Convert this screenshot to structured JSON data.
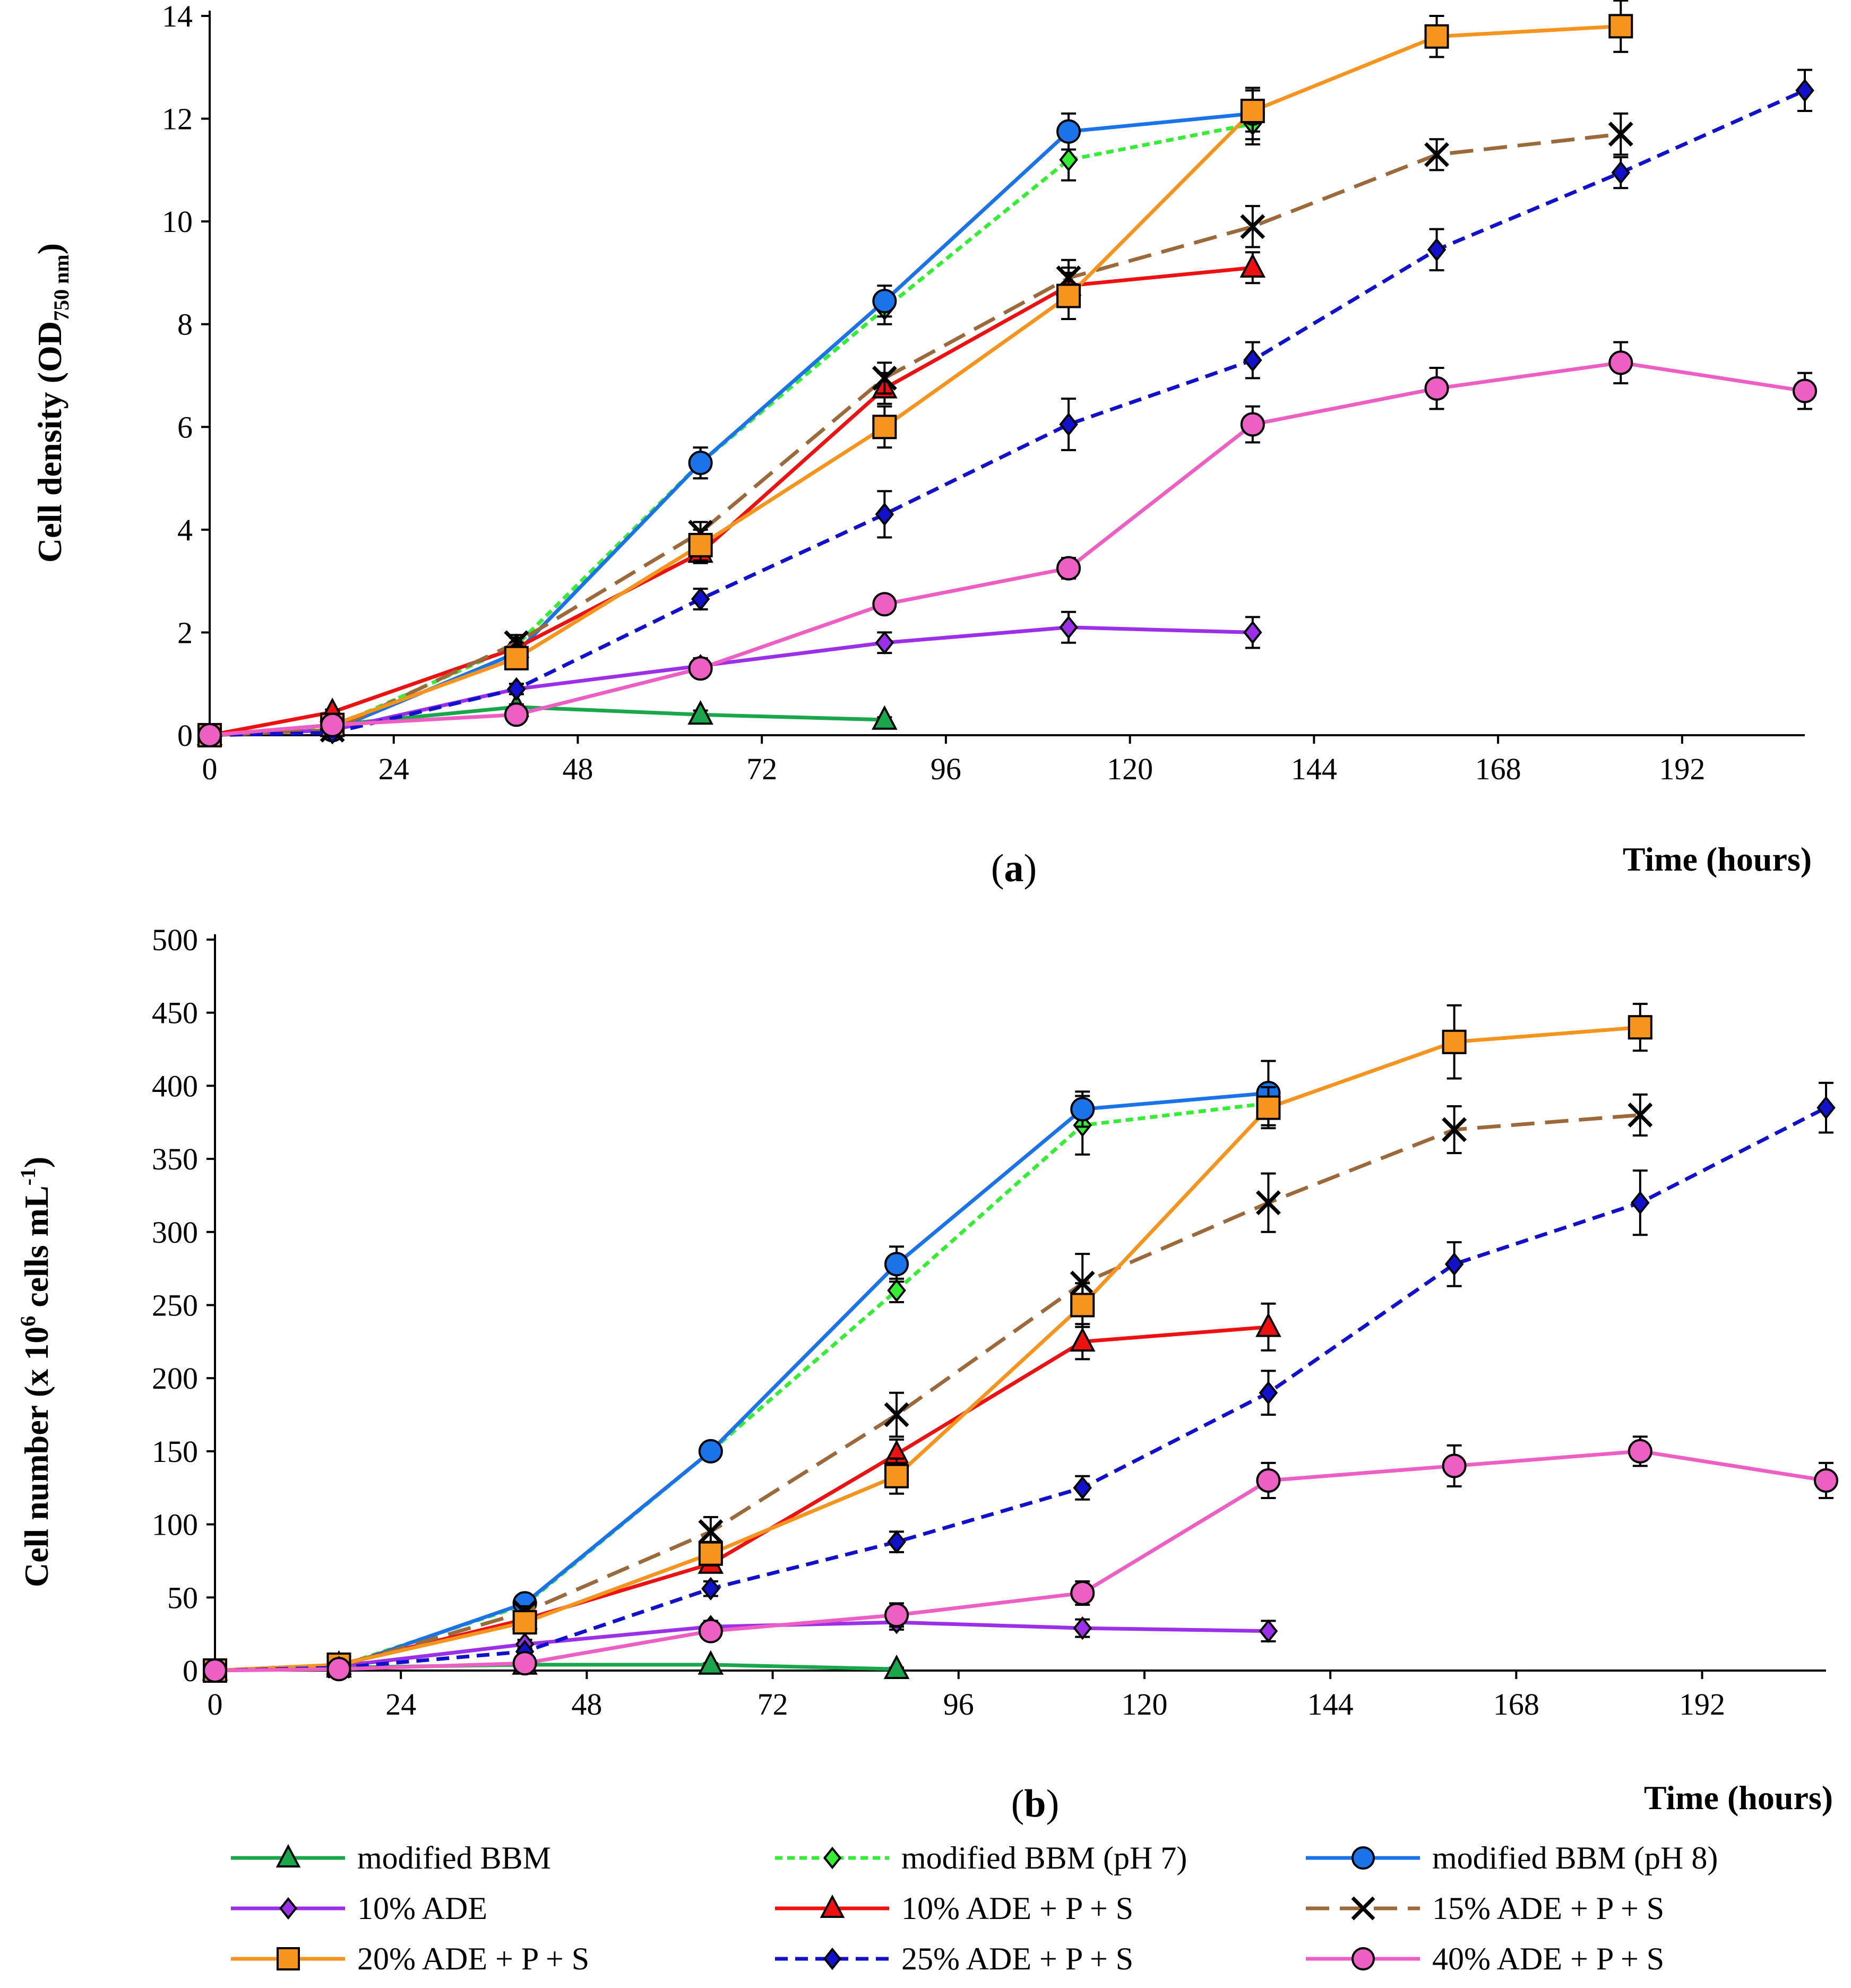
{
  "legend": [
    {
      "name": "modified BBM",
      "color": "#1aa64a",
      "marker": "triangle",
      "dash": "solid"
    },
    {
      "name": "modified BBM (pH 7)",
      "color": "#33ee33",
      "marker": "diamond",
      "dash": "dotted"
    },
    {
      "name": "modified BBM (pH 8)",
      "color": "#1a73e8",
      "marker": "circle",
      "dash": "solid"
    },
    {
      "name": "10% ADE",
      "color": "#9b30e8",
      "marker": "diamond",
      "dash": "solid"
    },
    {
      "name": "10% ADE + P + S",
      "color": "#ee1111",
      "marker": "triangle",
      "dash": "solid"
    },
    {
      "name": "15% ADE + P + S",
      "color": "#9c6a3a",
      "marker": "x",
      "dash": "longdash"
    },
    {
      "name": "20% ADE + P + S",
      "color": "#f7941d",
      "marker": "square",
      "dash": "solid"
    },
    {
      "name": "25% ADE + P + S",
      "color": "#1111cc",
      "marker": "diamond",
      "dash": "dash"
    },
    {
      "name": "40% ADE + P + S",
      "color": "#ee5fc4",
      "marker": "circle",
      "dash": "solid"
    }
  ],
  "chart_data": [
    {
      "type": "line",
      "panel_label": "a",
      "ylabel": "Cell density (OD750 nm)",
      "ylabel_main": "Cell density (OD",
      "ylabel_sub": "750 nm",
      "ylabel_end": ")",
      "xlabel": "Time (hours)",
      "xlim": [
        0,
        208
      ],
      "ylim": [
        0,
        14
      ],
      "xticks": [
        0,
        24,
        48,
        72,
        96,
        120,
        144,
        168,
        192
      ],
      "yticks": [
        0,
        2,
        4,
        6,
        8,
        10,
        12,
        14
      ],
      "series": [
        {
          "name": "modified BBM",
          "x": [
            0,
            16,
            40,
            64,
            88
          ],
          "y": [
            0,
            0.2,
            0.55,
            0.4,
            0.3
          ],
          "err": [
            0,
            0.05,
            0.05,
            0.08,
            0.05
          ]
        },
        {
          "name": "modified BBM (pH 7)",
          "x": [
            0,
            16,
            40,
            64,
            88,
            112,
            136
          ],
          "y": [
            0,
            0.15,
            1.75,
            5.3,
            8.3,
            11.2,
            11.9
          ],
          "err": [
            0,
            0.05,
            0.15,
            0.3,
            0.3,
            0.4,
            0.4
          ]
        },
        {
          "name": "modified BBM (pH 8)",
          "x": [
            0,
            16,
            40,
            64,
            88,
            112,
            136
          ],
          "y": [
            0,
            0.1,
            1.6,
            5.3,
            8.45,
            11.75,
            12.1
          ],
          "err": [
            0,
            0.05,
            0.15,
            0.3,
            0.3,
            0.35,
            0.5
          ]
        },
        {
          "name": "10% ADE",
          "x": [
            0,
            16,
            40,
            64,
            88,
            112,
            136
          ],
          "y": [
            0,
            0.1,
            0.9,
            1.35,
            1.8,
            2.1,
            2.0
          ],
          "err": [
            0,
            0.05,
            0.1,
            0.15,
            0.2,
            0.3,
            0.3
          ]
        },
        {
          "name": "10% ADE + P + S",
          "x": [
            0,
            16,
            40,
            64,
            88,
            112,
            136
          ],
          "y": [
            0,
            0.45,
            1.7,
            3.55,
            6.75,
            8.75,
            9.1
          ],
          "err": [
            0,
            0.05,
            0.1,
            0.2,
            0.3,
            0.35,
            0.3
          ]
        },
        {
          "name": "15% ADE + P + S",
          "x": [
            0,
            16,
            40,
            64,
            88,
            112,
            136,
            160,
            184
          ],
          "y": [
            0,
            0.1,
            1.8,
            3.95,
            6.95,
            8.9,
            9.9,
            11.3,
            11.7
          ],
          "err": [
            0,
            0.05,
            0.15,
            0.2,
            0.3,
            0.35,
            0.4,
            0.3,
            0.4
          ]
        },
        {
          "name": "20% ADE + P + S",
          "x": [
            0,
            16,
            40,
            64,
            88,
            112,
            136,
            160,
            184
          ],
          "y": [
            0,
            0.2,
            1.5,
            3.7,
            6.0,
            8.55,
            12.15,
            13.6,
            13.8
          ],
          "err": [
            0,
            0.05,
            0.15,
            0.3,
            0.4,
            0.45,
            0.4,
            0.4,
            0.5
          ]
        },
        {
          "name": "25% ADE + P + S",
          "x": [
            0,
            16,
            40,
            64,
            88,
            112,
            136,
            160,
            184,
            208
          ],
          "y": [
            0,
            0.05,
            0.9,
            2.65,
            4.3,
            6.05,
            7.3,
            9.45,
            10.95,
            12.55
          ],
          "err": [
            0,
            0.05,
            0.1,
            0.2,
            0.45,
            0.5,
            0.35,
            0.4,
            0.3,
            0.4
          ]
        },
        {
          "name": "40% ADE + P + S",
          "x": [
            0,
            16,
            40,
            64,
            88,
            112,
            136,
            160,
            184,
            208
          ],
          "y": [
            0,
            0.2,
            0.4,
            1.3,
            2.55,
            3.25,
            6.05,
            6.75,
            7.25,
            6.7
          ],
          "err": [
            0,
            0.05,
            0.08,
            0.15,
            0.15,
            0.2,
            0.35,
            0.4,
            0.4,
            0.35
          ]
        }
      ]
    },
    {
      "type": "line",
      "panel_label": "b",
      "ylabel": "Cell number (x 10^6 cells mL^-1)",
      "ylabel_main": "Cell number (x 10",
      "ylabel_sup1": "6",
      "ylabel_mid": " cells mL",
      "ylabel_sup2": "-1",
      "ylabel_end": ")",
      "xlabel": "Time (hours)",
      "xlim": [
        0,
        208
      ],
      "ylim": [
        0,
        500
      ],
      "xticks": [
        0,
        24,
        48,
        72,
        96,
        120,
        144,
        168,
        192
      ],
      "yticks": [
        0,
        50,
        100,
        150,
        200,
        250,
        300,
        350,
        400,
        450,
        500
      ],
      "series": [
        {
          "name": "modified BBM",
          "x": [
            0,
            16,
            40,
            64,
            88
          ],
          "y": [
            0,
            2,
            4,
            4,
            1
          ],
          "err": [
            0,
            1,
            1,
            1,
            1
          ]
        },
        {
          "name": "modified BBM (pH 7)",
          "x": [
            0,
            16,
            40,
            64,
            88,
            112,
            136
          ],
          "y": [
            0,
            3,
            45,
            150,
            260,
            373,
            388
          ],
          "err": [
            0,
            1,
            3,
            5,
            8,
            20,
            10
          ]
        },
        {
          "name": "modified BBM (pH 8)",
          "x": [
            0,
            16,
            40,
            64,
            88,
            112,
            136
          ],
          "y": [
            0,
            2,
            46,
            150,
            278,
            384,
            395
          ],
          "err": [
            0,
            1,
            4,
            5,
            12,
            12,
            22
          ]
        },
        {
          "name": "10% ADE",
          "x": [
            0,
            16,
            40,
            64,
            88,
            112,
            136
          ],
          "y": [
            0,
            3,
            18,
            30,
            33,
            29,
            27
          ],
          "err": [
            0,
            1,
            3,
            4,
            5,
            6,
            7
          ]
        },
        {
          "name": "10% ADE + P + S",
          "x": [
            0,
            16,
            40,
            64,
            88,
            112,
            136
          ],
          "y": [
            0,
            4,
            35,
            73,
            148,
            225,
            235
          ],
          "err": [
            0,
            1,
            4,
            6,
            10,
            12,
            16
          ]
        },
        {
          "name": "15% ADE + P + S",
          "x": [
            0,
            16,
            40,
            64,
            88,
            112,
            136,
            160,
            184
          ],
          "y": [
            0,
            3,
            40,
            95,
            175,
            265,
            320,
            370,
            380
          ],
          "err": [
            0,
            1,
            4,
            10,
            15,
            20,
            20,
            16,
            14
          ]
        },
        {
          "name": "20% ADE + P + S",
          "x": [
            0,
            16,
            40,
            64,
            88,
            112,
            136,
            160,
            184
          ],
          "y": [
            0,
            4,
            33,
            80,
            133,
            250,
            385,
            430,
            440
          ],
          "err": [
            0,
            1,
            4,
            8,
            12,
            15,
            14,
            25,
            16
          ]
        },
        {
          "name": "25% ADE + P + S",
          "x": [
            0,
            16,
            40,
            64,
            88,
            112,
            136,
            160,
            184,
            208
          ],
          "y": [
            0,
            2,
            13,
            56,
            88,
            125,
            190,
            278,
            320,
            385
          ],
          "err": [
            0,
            1,
            2,
            5,
            7,
            8,
            15,
            15,
            22,
            17
          ]
        },
        {
          "name": "40% ADE + P + S",
          "x": [
            0,
            16,
            40,
            64,
            88,
            112,
            136,
            160,
            184,
            208
          ],
          "y": [
            0,
            1,
            5,
            27,
            38,
            53,
            130,
            140,
            150,
            130
          ],
          "err": [
            0,
            1,
            2,
            4,
            8,
            8,
            12,
            14,
            10,
            12
          ]
        }
      ]
    }
  ]
}
